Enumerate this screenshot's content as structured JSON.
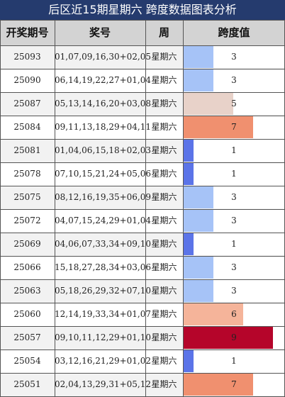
{
  "title": "后区近15期星期六 跨度数据图表分析",
  "headers": {
    "period": "开奖期号",
    "numbers": "奖号",
    "week": "周",
    "span": "跨度值"
  },
  "max_span": 9,
  "rows": [
    {
      "period": "25093",
      "numbers": "01,07,09,16,30+02,05",
      "week": "星期六",
      "span": "3",
      "span_value": 3,
      "color": "#a6c3f7"
    },
    {
      "period": "25090",
      "numbers": "06,14,19,22,27+01,04",
      "week": "星期六",
      "span": "3",
      "span_value": 3,
      "color": "#a6c3f7"
    },
    {
      "period": "25087",
      "numbers": "05,13,14,16,20+03,08",
      "week": "星期六",
      "span": "5",
      "span_value": 5,
      "color": "#e8d2c9"
    },
    {
      "period": "25084",
      "numbers": "09,11,13,18,29+04,11",
      "week": "星期六",
      "span": "7",
      "span_value": 7,
      "color": "#f0906f"
    },
    {
      "period": "25081",
      "numbers": "01,04,06,15,18+02,03",
      "week": "星期六",
      "span": "1",
      "span_value": 1,
      "color": "#5b74e8"
    },
    {
      "period": "25078",
      "numbers": "07,10,15,21,24+05,06",
      "week": "星期六",
      "span": "1",
      "span_value": 1,
      "color": "#5b74e8"
    },
    {
      "period": "25075",
      "numbers": "08,12,16,19,35+06,09",
      "week": "星期六",
      "span": "3",
      "span_value": 3,
      "color": "#a6c3f7"
    },
    {
      "period": "25072",
      "numbers": "04,07,15,24,29+01,04",
      "week": "星期六",
      "span": "3",
      "span_value": 3,
      "color": "#a6c3f7"
    },
    {
      "period": "25069",
      "numbers": "04,06,07,33,34+09,10",
      "week": "星期六",
      "span": "1",
      "span_value": 1,
      "color": "#5b74e8"
    },
    {
      "period": "25066",
      "numbers": "15,18,27,28,34+03,06",
      "week": "星期六",
      "span": "3",
      "span_value": 3,
      "color": "#a6c3f7"
    },
    {
      "period": "25063",
      "numbers": "05,18,26,29,32+07,10",
      "week": "星期六",
      "span": "3",
      "span_value": 3,
      "color": "#a6c3f7"
    },
    {
      "period": "25060",
      "numbers": "12,14,19,33,34+01,07",
      "week": "星期六",
      "span": "6",
      "span_value": 6,
      "color": "#f5b49a"
    },
    {
      "period": "25057",
      "numbers": "09,10,11,12,29+01,10",
      "week": "星期六",
      "span": "9",
      "span_value": 9,
      "color": "#b5052a"
    },
    {
      "period": "25054",
      "numbers": "03,12,16,21,29+01,02",
      "week": "星期六",
      "span": "1",
      "span_value": 1,
      "color": "#5b74e8"
    },
    {
      "period": "25051",
      "numbers": "02,04,13,29,31+05,12",
      "week": "星期六",
      "span": "7",
      "span_value": 7,
      "color": "#f0906f"
    }
  ]
}
